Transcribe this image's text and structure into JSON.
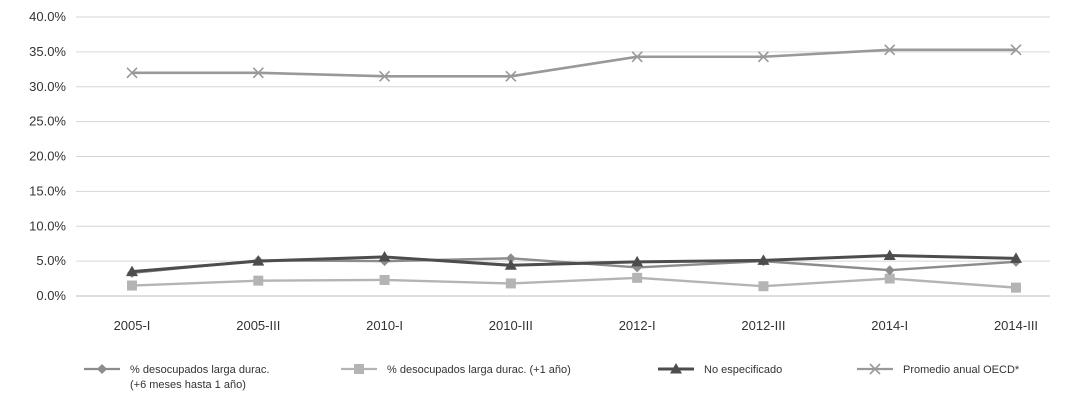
{
  "chart_data": {
    "type": "line",
    "title": "",
    "xlabel": "",
    "ylabel": "",
    "categories": [
      "2005-I",
      "2005-III",
      "2010-I",
      "2010-III",
      "2012-I",
      "2012-III",
      "2014-I",
      "2014-III"
    ],
    "y_ticks": [
      "0.0%",
      "5.0%",
      "10.0%",
      "15.0%",
      "20.0%",
      "25.0%",
      "30.0%",
      "35.0%",
      "40.0%"
    ],
    "ylim": [
      0,
      40
    ],
    "grid": true,
    "legend_position": "bottom",
    "series": [
      {
        "name": "% desocupados larga durac. (+6 meses hasta 1 año)",
        "legend_lines": [
          "% desocupados larga durac.",
          "(+6 meses hasta 1 año)"
        ],
        "marker": "diamond",
        "color": "#8c8c8c",
        "values": [
          3.3,
          5.1,
          5.0,
          5.4,
          4.1,
          5.0,
          3.7,
          4.9
        ]
      },
      {
        "name": "% desocupados larga durac. (+1 año)",
        "legend_lines": [
          "% desocupados larga durac. (+1 año)"
        ],
        "marker": "square",
        "color": "#b4b4b4",
        "values": [
          1.5,
          2.2,
          2.3,
          1.8,
          2.6,
          1.4,
          2.5,
          1.2
        ]
      },
      {
        "name": "No especificado",
        "legend_lines": [
          "No especificado"
        ],
        "marker": "triangle",
        "color": "#4d4d4d",
        "values": [
          3.5,
          5.0,
          5.6,
          4.4,
          4.9,
          5.1,
          5.8,
          5.4
        ]
      },
      {
        "name": "Promedio anual OECD*",
        "legend_lines": [
          "Promedio anual OECD*"
        ],
        "marker": "x",
        "color": "#999999",
        "values": [
          32.0,
          32.0,
          31.5,
          31.5,
          34.3,
          34.3,
          35.3,
          35.3
        ]
      }
    ]
  }
}
